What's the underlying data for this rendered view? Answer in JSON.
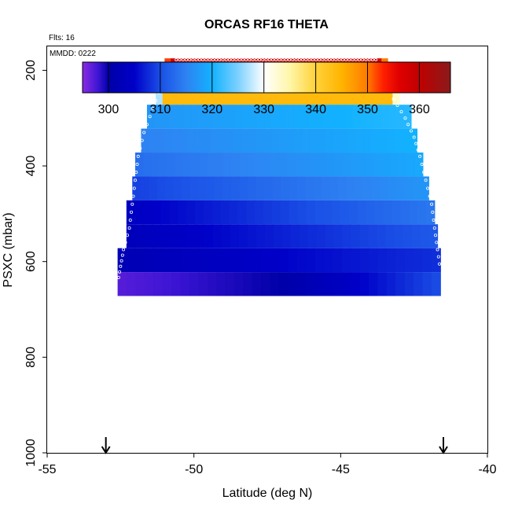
{
  "chart_data": {
    "type": "heatmap",
    "title": "ORCAS RF16 THETA",
    "annotations": {
      "flights": "Flts: 16",
      "date": "MMDD: 0222"
    },
    "xlabel": "Latitude (deg N)",
    "ylabel": "PSXC (mbar)",
    "xlim": [
      -55,
      -40
    ],
    "ylim": [
      1000,
      150
    ],
    "y_reversed": true,
    "xticks": [
      -55,
      -50,
      -45,
      -40
    ],
    "yticks": [
      200,
      400,
      600,
      800,
      1000
    ],
    "colorbar": {
      "range": [
        295,
        366
      ],
      "ticks": [
        300,
        310,
        320,
        330,
        340,
        350,
        360
      ],
      "stops": [
        {
          "v": 295,
          "c": "#8a2be2"
        },
        {
          "v": 298,
          "c": "#3d15d4"
        },
        {
          "v": 300,
          "c": "#0000a8"
        },
        {
          "v": 305,
          "c": "#0000c8"
        },
        {
          "v": 310,
          "c": "#1a4fe6"
        },
        {
          "v": 315,
          "c": "#2e82f2"
        },
        {
          "v": 320,
          "c": "#12b2ff"
        },
        {
          "v": 325,
          "c": "#7cd0ff"
        },
        {
          "v": 330,
          "c": "#ffffff"
        },
        {
          "v": 335,
          "c": "#fff6a8"
        },
        {
          "v": 340,
          "c": "#ffd23a"
        },
        {
          "v": 345,
          "c": "#ffb400"
        },
        {
          "v": 350,
          "c": "#ff7a00"
        },
        {
          "v": 353,
          "c": "#ff2000"
        },
        {
          "v": 356,
          "c": "#e00000"
        },
        {
          "v": 360,
          "c": "#c00000"
        },
        {
          "v": 366,
          "c": "#8a1a1a"
        }
      ]
    },
    "rows": [
      {
        "p_top": 175,
        "p_bot": 222,
        "lat_min": -51.0,
        "lat_max": -43.4,
        "edge_start": 352,
        "edge_end": 350,
        "start": 358,
        "end": 357
      },
      {
        "p_top": 222,
        "p_bot": 272,
        "lat_min": -51.3,
        "lat_max": -43.0,
        "edge_start": 327,
        "edge_end": 333,
        "start": 344,
        "end": 344
      },
      {
        "p_top": 272,
        "p_bot": 322,
        "lat_min": -51.6,
        "lat_max": -42.6,
        "start": 317,
        "end": 321
      },
      {
        "p_top": 322,
        "p_bot": 372,
        "lat_min": -51.8,
        "lat_max": -42.4,
        "start": 315,
        "end": 320
      },
      {
        "p_top": 372,
        "p_bot": 422,
        "lat_min": -52.0,
        "lat_max": -42.2,
        "start": 313,
        "end": 319
      },
      {
        "p_top": 422,
        "p_bot": 472,
        "lat_min": -52.1,
        "lat_max": -42.0,
        "start": 309,
        "end": 317
      },
      {
        "p_top": 472,
        "p_bot": 522,
        "lat_min": -52.3,
        "lat_max": -41.8,
        "start": 304,
        "end": 314
      },
      {
        "p_top": 522,
        "p_bot": 572,
        "lat_min": -52.3,
        "lat_max": -41.7,
        "start": 303,
        "end": 311
      },
      {
        "p_top": 572,
        "p_bot": 622,
        "lat_min": -52.6,
        "lat_max": -41.6,
        "start": 302,
        "end": 308
      },
      {
        "p_top": 622,
        "p_bot": 672,
        "lat_min": -52.6,
        "lat_max": -41.6,
        "start": 297,
        "mid": 300,
        "end": 310
      }
    ],
    "flight_track": {
      "top_leg": {
        "p": 178,
        "lat_from": -50.6,
        "lat_to": -43.8
      },
      "west_edge": [
        [
          -51.1,
          230
        ],
        [
          -51.4,
          280
        ],
        [
          -51.7,
          330
        ],
        [
          -51.9,
          380
        ],
        [
          -52.0,
          430
        ],
        [
          -52.1,
          480
        ],
        [
          -52.2,
          530
        ],
        [
          -52.4,
          575
        ],
        [
          -52.5,
          610
        ],
        [
          -52.6,
          645
        ]
      ],
      "east_edge": [
        [
          -43.6,
          210
        ],
        [
          -43.2,
          260
        ],
        [
          -42.8,
          300
        ],
        [
          -42.5,
          340
        ],
        [
          -42.3,
          380
        ],
        [
          -42.1,
          430
        ],
        [
          -41.9,
          480
        ],
        [
          -41.8,
          530
        ],
        [
          -41.7,
          575
        ],
        [
          -41.6,
          620
        ]
      ]
    },
    "arrows": [
      {
        "lat": -53.0
      },
      {
        "lat": -41.5
      }
    ]
  }
}
